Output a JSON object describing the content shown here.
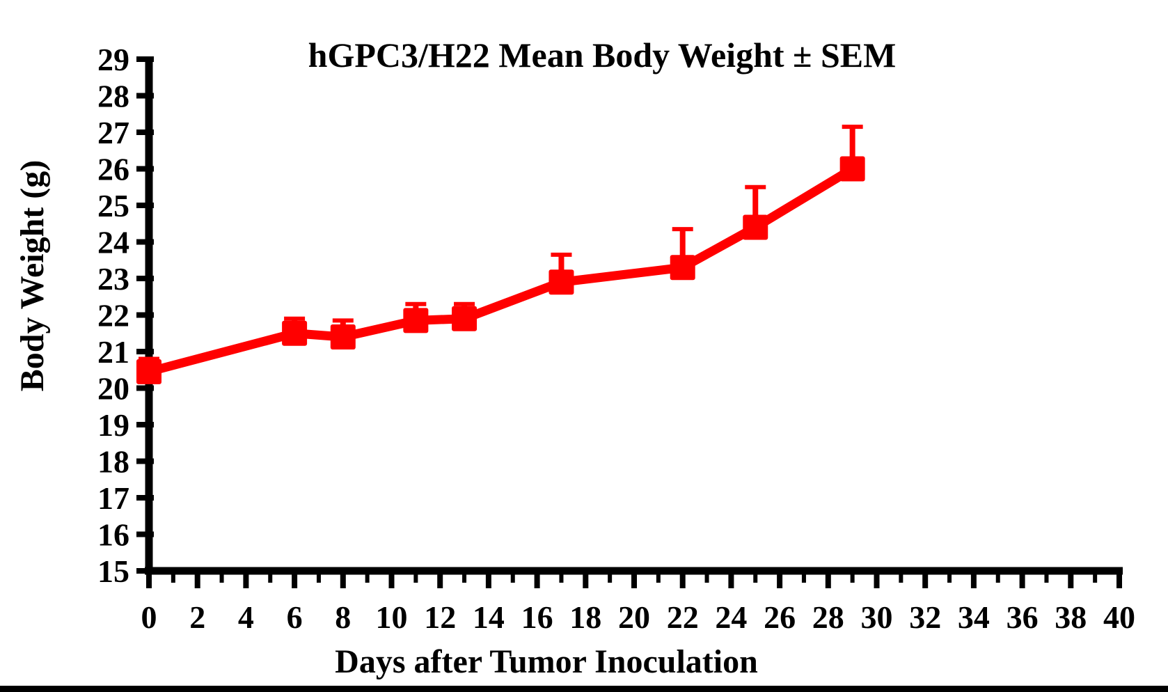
{
  "figure": {
    "title": "hGPC3/H22 Mean Body Weight ± SEM",
    "x_axis_label": "Days after Tumor Inoculation",
    "y_axis_label": "Body Weight (g)"
  },
  "chart_data": {
    "type": "line",
    "title": "hGPC3/H22 Mean Body Weight ± SEM",
    "xlabel": "Days after Tumor Inoculation",
    "ylabel": "Body Weight (g)",
    "x": [
      0,
      6,
      8,
      11,
      13,
      17,
      22,
      25,
      29
    ],
    "series": [
      {
        "name": "hGPC3/H22 mean body weight",
        "values": [
          20.45,
          21.5,
          21.4,
          21.85,
          21.9,
          22.9,
          23.3,
          24.4,
          26.0
        ],
        "sem_upper": [
          0.35,
          0.4,
          0.45,
          0.45,
          0.4,
          0.75,
          1.05,
          1.1,
          1.15
        ]
      }
    ],
    "xlim": [
      0,
      40
    ],
    "ylim": [
      15,
      29
    ],
    "x_major_ticks": [
      0,
      2,
      4,
      6,
      8,
      10,
      12,
      14,
      16,
      18,
      20,
      22,
      24,
      26,
      28,
      30,
      32,
      34,
      36,
      38,
      40
    ],
    "x_minor_ticks": [
      1,
      3,
      5,
      7,
      9,
      11,
      13,
      15,
      17,
      19,
      21,
      23,
      25,
      27,
      29,
      31,
      33,
      35,
      37,
      39
    ],
    "y_ticks": [
      15,
      16,
      17,
      18,
      19,
      20,
      21,
      22,
      23,
      24,
      25,
      26,
      27,
      28,
      29
    ],
    "x_tick_labels": [
      "0",
      "2",
      "4",
      "6",
      "8",
      "10",
      "12",
      "14",
      "16",
      "18",
      "20",
      "22",
      "24",
      "26",
      "28",
      "30",
      "32",
      "34",
      "36",
      "38",
      "40"
    ],
    "y_tick_labels": [
      "15",
      "16",
      "17",
      "18",
      "19",
      "20",
      "21",
      "22",
      "23",
      "24",
      "25",
      "26",
      "27",
      "28",
      "29"
    ],
    "grid": false,
    "legend_position": "none",
    "marker": "filled-square",
    "error_bar_style": "upper-only-with-cap",
    "series_color": "#ff0000",
    "axis_color": "#000000",
    "background_color": "#ffffff"
  },
  "decorations": {
    "bottom_bar_color": "#000000"
  }
}
